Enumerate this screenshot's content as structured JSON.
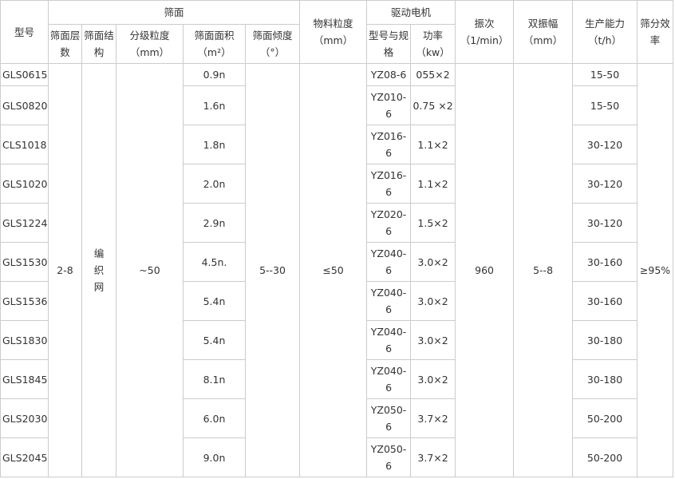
{
  "headers": {
    "model": "型号",
    "screen_group": "筛面",
    "layers": "筛面层数",
    "structure": "筛面结构",
    "grading": "分级粒度（mm）",
    "area": "筛面面积（m²）",
    "incline": "筛面倾度（°）",
    "particle": "物料粒度（mm）",
    "motor_group": "驱动电机",
    "motor_model": "型号与规格",
    "power": "功率（kw）",
    "frequency": "振次（1/min）",
    "amplitude": "双振幅（mm）",
    "capacity": "生产能力（t/h）",
    "efficiency": "筛分效率"
  },
  "shared": {
    "layers": "2-8",
    "structure": "编织网",
    "grading": "~50",
    "incline": "5--30",
    "particle": "≤50",
    "frequency": "960",
    "amplitude": "5--8",
    "efficiency": "≥95%"
  },
  "rows": [
    {
      "model": "GLS0615",
      "area": "0.9n",
      "motor": "YZ08-6",
      "power": "055×2",
      "capacity": "15-50"
    },
    {
      "model": "GLS0820",
      "area": "1.6n",
      "motor": "YZ010-6",
      "power": "0.75 ×2",
      "capacity": "15-50"
    },
    {
      "model": "CLS1018",
      "area": "1.8n",
      "motor": "YZ016-6",
      "power": "1.1×2",
      "capacity": "30-120"
    },
    {
      "model": "GLS1020",
      "area": "2.0n",
      "motor": "YZ016-6",
      "power": "1.1×2",
      "capacity": "30-120"
    },
    {
      "model": "GLS1224",
      "area": "2.9n",
      "motor": "YZ020-6",
      "power": "1.5×2",
      "capacity": "30-120"
    },
    {
      "model": "GLS1530",
      "area": "4.5n.",
      "motor": "YZ040-6",
      "power": "3.0×2",
      "capacity": "30-160"
    },
    {
      "model": "GLS1536",
      "area": "5.4n",
      "motor": "YZ040-6",
      "power": "3.0×2",
      "capacity": "30-160"
    },
    {
      "model": "GLS1830",
      "area": "5.4n",
      "motor": "YZ040-6",
      "power": "3.0×2",
      "capacity": "30-180"
    },
    {
      "model": "GLS1845",
      "area": "8.1n",
      "motor": "YZ040-6",
      "power": "3.0×2",
      "capacity": "30-180"
    },
    {
      "model": "GLS2030",
      "area": "6.0n",
      "motor": "YZ050-6",
      "power": "3.7×2",
      "capacity": "50-200"
    },
    {
      "model": "GLS2045",
      "area": "9.0n",
      "motor": "YZ050-6",
      "power": "3.7×2",
      "capacity": "50-200"
    }
  ]
}
